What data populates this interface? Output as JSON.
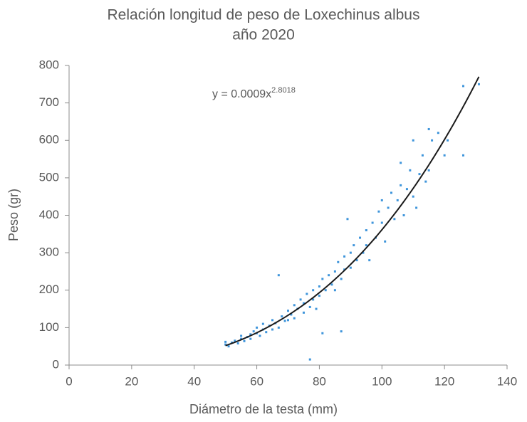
{
  "chart_data": {
    "type": "scatter",
    "title": [
      "Relación longitud de peso de  Loxechinus albus",
      "año 2020"
    ],
    "x_label": "Diámetro de la testa (mm)",
    "y_label": "Peso (gr)",
    "equation": {
      "text": "y = 0.0009x",
      "exponent": "2.8018"
    },
    "trendline": {
      "a": 0.0009,
      "b": 2.8018,
      "x_range": [
        50,
        131
      ],
      "color": "#1a1a1a"
    },
    "color": "#3f95db",
    "x": [
      50,
      50,
      51,
      52,
      53,
      54,
      55,
      55,
      56,
      57,
      58,
      58,
      59,
      60,
      60,
      61,
      62,
      62,
      63,
      64,
      65,
      65,
      66,
      67,
      67,
      68,
      69,
      70,
      70,
      71,
      72,
      72,
      73,
      74,
      75,
      75,
      76,
      77,
      77,
      78,
      78,
      79,
      80,
      80,
      81,
      81,
      82,
      83,
      84,
      85,
      85,
      86,
      87,
      87,
      88,
      88,
      89,
      90,
      90,
      91,
      92,
      93,
      94,
      95,
      95,
      96,
      97,
      98,
      99,
      100,
      100,
      101,
      102,
      103,
      104,
      105,
      106,
      106,
      107,
      108,
      109,
      110,
      110,
      111,
      112,
      113,
      114,
      115,
      115,
      116,
      118,
      120,
      121,
      126,
      126,
      131
    ],
    "values": [
      55,
      62,
      50,
      60,
      65,
      58,
      70,
      78,
      64,
      75,
      82,
      70,
      90,
      85,
      100,
      78,
      95,
      110,
      88,
      105,
      120,
      95,
      112,
      240,
      100,
      130,
      118,
      145,
      120,
      135,
      160,
      125,
      150,
      175,
      165,
      140,
      190,
      15,
      155,
      200,
      175,
      150,
      210,
      185,
      85,
      230,
      200,
      240,
      215,
      250,
      200,
      275,
      90,
      230,
      290,
      255,
      390,
      300,
      260,
      320,
      280,
      340,
      300,
      360,
      320,
      280,
      380,
      340,
      410,
      380,
      440,
      330,
      420,
      460,
      390,
      440,
      480,
      540,
      400,
      470,
      520,
      450,
      600,
      420,
      510,
      560,
      490,
      630,
      520,
      600,
      620,
      560,
      600,
      745,
      560,
      750
    ],
    "xlim": [
      0,
      140
    ],
    "xticks": [
      0,
      20,
      40,
      60,
      80,
      100,
      120,
      140
    ],
    "ylim": [
      0,
      800
    ],
    "yticks": [
      0,
      100,
      200,
      300,
      400,
      500,
      600,
      700,
      800
    ],
    "grid": false
  }
}
